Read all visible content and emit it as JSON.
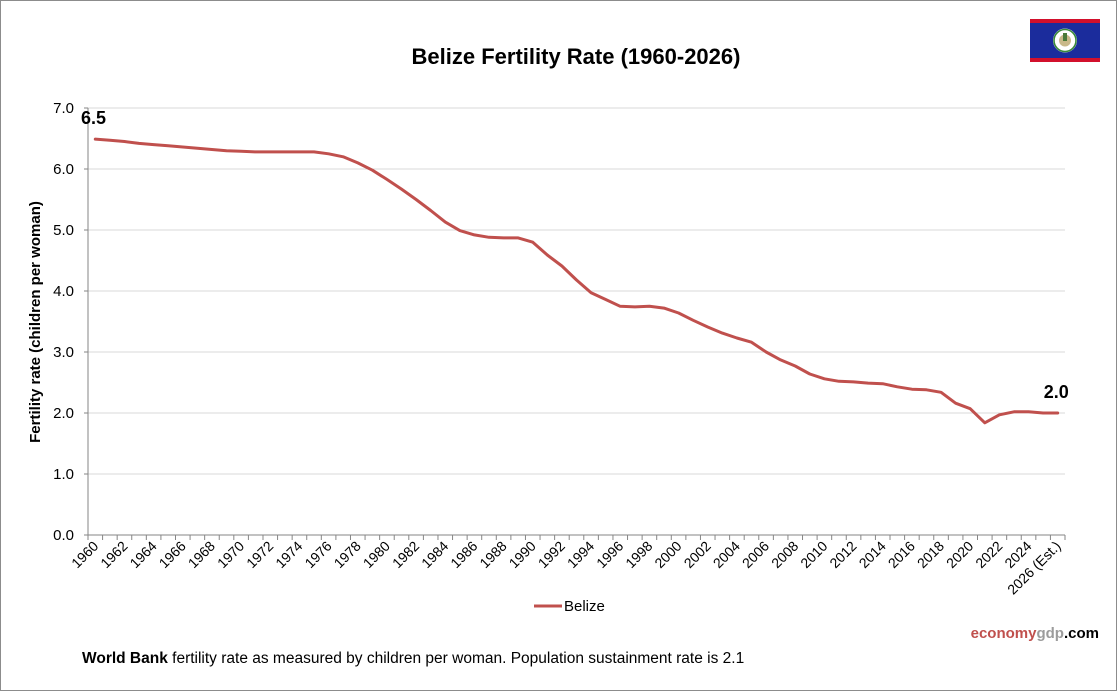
{
  "chart_data": {
    "type": "line",
    "title": "Belize Fertility Rate (1960-2026)",
    "xlabel": "",
    "ylabel": "Fertility rate (children per woman)",
    "ylim": [
      0,
      7
    ],
    "yticks": [
      "0.0",
      "1.0",
      "2.0",
      "3.0",
      "4.0",
      "5.0",
      "6.0",
      "7.0"
    ],
    "grid": true,
    "legend_position": "bottom-center",
    "categories": [
      "1960",
      "1961",
      "1962",
      "1963",
      "1964",
      "1965",
      "1966",
      "1967",
      "1968",
      "1969",
      "1970",
      "1971",
      "1972",
      "1973",
      "1974",
      "1975",
      "1976",
      "1977",
      "1978",
      "1979",
      "1980",
      "1981",
      "1982",
      "1983",
      "1984",
      "1985",
      "1986",
      "1987",
      "1988",
      "1989",
      "1990",
      "1991",
      "1992",
      "1993",
      "1994",
      "1995",
      "1996",
      "1997",
      "1998",
      "1999",
      "2000",
      "2001",
      "2002",
      "2003",
      "2004",
      "2005",
      "2006",
      "2007",
      "2008",
      "2009",
      "2010",
      "2011",
      "2012",
      "2013",
      "2014",
      "2015",
      "2016",
      "2017",
      "2018",
      "2019",
      "2020",
      "2021",
      "2022",
      "2023",
      "2024",
      "2025",
      "2026 (Est.)"
    ],
    "tick_labels": [
      "1960",
      "1962",
      "1964",
      "1966",
      "1968",
      "1970",
      "1972",
      "1974",
      "1976",
      "1978",
      "1980",
      "1982",
      "1984",
      "1986",
      "1988",
      "1990",
      "1992",
      "1994",
      "1996",
      "1998",
      "2000",
      "2002",
      "2004",
      "2006",
      "2008",
      "2010",
      "2012",
      "2014",
      "2016",
      "2018",
      "2020",
      "2022",
      "2024",
      "2026 (Est.)"
    ],
    "series": [
      {
        "name": "Belize",
        "color": "#c0504d",
        "values": [
          6.49,
          6.47,
          6.45,
          6.42,
          6.4,
          6.38,
          6.36,
          6.34,
          6.32,
          6.3,
          6.29,
          6.28,
          6.28,
          6.28,
          6.28,
          6.28,
          6.25,
          6.2,
          6.1,
          5.98,
          5.83,
          5.67,
          5.5,
          5.32,
          5.13,
          4.99,
          4.92,
          4.88,
          4.87,
          4.87,
          4.8,
          4.59,
          4.41,
          4.18,
          3.97,
          3.86,
          3.75,
          3.74,
          3.75,
          3.72,
          3.64,
          3.52,
          3.41,
          3.31,
          3.23,
          3.16,
          3.0,
          2.87,
          2.77,
          2.64,
          2.56,
          2.52,
          2.51,
          2.49,
          2.48,
          2.43,
          2.39,
          2.38,
          2.34,
          2.16,
          2.07,
          1.84,
          1.97,
          2.02,
          2.02,
          2.0,
          2.0
        ]
      }
    ],
    "annotations": [
      {
        "label": "6.5",
        "category": "1960"
      },
      {
        "label": "2.0",
        "category": "2026 (Est.)"
      }
    ]
  },
  "legend": {
    "label": "Belize"
  },
  "flag": {
    "name": "Belize flag",
    "colors": {
      "blue": "#1b2c9c",
      "red": "#d2102c"
    }
  },
  "brand": {
    "part1": "economy",
    "part2": "gdp",
    "part3": ".com"
  },
  "footer": {
    "bold": "World Bank",
    "text": " fertility rate as measured by children per woman.  Population sustainment rate is 2.1"
  }
}
